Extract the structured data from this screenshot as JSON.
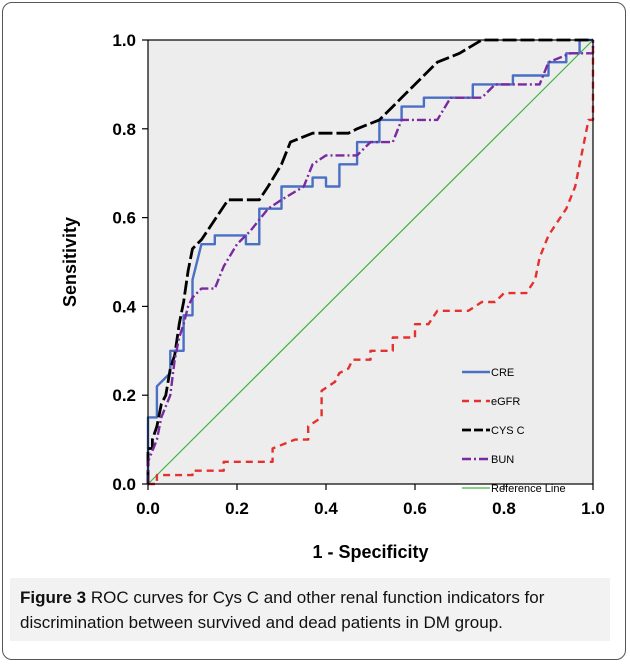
{
  "caption": {
    "label": "Figure 3",
    "text": "ROC curves for Cys C and other renal function indicators for discrimination between survived and dead patients in DM group."
  },
  "chart_data": {
    "type": "line",
    "title": "",
    "xlabel": "1 - Specificity",
    "ylabel": "Sensitivity",
    "xlim": [
      0,
      1
    ],
    "ylim": [
      0,
      1
    ],
    "x_ticks": [
      "0.0",
      "0.2",
      "0.4",
      "0.6",
      "0.8",
      "1.0"
    ],
    "y_ticks": [
      "0.0",
      "0.2",
      "0.4",
      "0.6",
      "0.8",
      "1.0"
    ],
    "grid": false,
    "plot_background": "#ededed",
    "legend_position": "bottom-right",
    "series": [
      {
        "name": "CRE",
        "color": "#4a6fc4",
        "dash": "solid",
        "points": [
          [
            0,
            0
          ],
          [
            0,
            0.15
          ],
          [
            0.02,
            0.15
          ],
          [
            0.02,
            0.22
          ],
          [
            0.05,
            0.25
          ],
          [
            0.05,
            0.3
          ],
          [
            0.08,
            0.3
          ],
          [
            0.08,
            0.38
          ],
          [
            0.1,
            0.38
          ],
          [
            0.1,
            0.46
          ],
          [
            0.12,
            0.54
          ],
          [
            0.15,
            0.54
          ],
          [
            0.15,
            0.56
          ],
          [
            0.22,
            0.56
          ],
          [
            0.22,
            0.54
          ],
          [
            0.25,
            0.54
          ],
          [
            0.25,
            0.62
          ],
          [
            0.3,
            0.62
          ],
          [
            0.3,
            0.67
          ],
          [
            0.37,
            0.67
          ],
          [
            0.37,
            0.69
          ],
          [
            0.4,
            0.69
          ],
          [
            0.4,
            0.67
          ],
          [
            0.43,
            0.67
          ],
          [
            0.43,
            0.72
          ],
          [
            0.47,
            0.72
          ],
          [
            0.47,
            0.77
          ],
          [
            0.52,
            0.77
          ],
          [
            0.52,
            0.82
          ],
          [
            0.57,
            0.82
          ],
          [
            0.57,
            0.85
          ],
          [
            0.62,
            0.85
          ],
          [
            0.62,
            0.87
          ],
          [
            0.73,
            0.87
          ],
          [
            0.73,
            0.9
          ],
          [
            0.82,
            0.9
          ],
          [
            0.82,
            0.92
          ],
          [
            0.9,
            0.92
          ],
          [
            0.9,
            0.95
          ],
          [
            0.94,
            0.95
          ],
          [
            0.94,
            0.97
          ],
          [
            0.97,
            0.97
          ],
          [
            0.97,
            1.0
          ],
          [
            1.0,
            1.0
          ]
        ]
      },
      {
        "name": "eGFR",
        "color": "#e53030",
        "dash": "dashed",
        "points": [
          [
            0,
            0
          ],
          [
            0.02,
            0
          ],
          [
            0.02,
            0.02
          ],
          [
            0.1,
            0.02
          ],
          [
            0.1,
            0.03
          ],
          [
            0.17,
            0.03
          ],
          [
            0.17,
            0.05
          ],
          [
            0.28,
            0.05
          ],
          [
            0.28,
            0.08
          ],
          [
            0.33,
            0.1
          ],
          [
            0.36,
            0.1
          ],
          [
            0.36,
            0.13
          ],
          [
            0.39,
            0.15
          ],
          [
            0.39,
            0.21
          ],
          [
            0.42,
            0.23
          ],
          [
            0.43,
            0.25
          ],
          [
            0.45,
            0.26
          ],
          [
            0.46,
            0.28
          ],
          [
            0.5,
            0.28
          ],
          [
            0.5,
            0.3
          ],
          [
            0.55,
            0.3
          ],
          [
            0.55,
            0.33
          ],
          [
            0.6,
            0.33
          ],
          [
            0.6,
            0.36
          ],
          [
            0.63,
            0.36
          ],
          [
            0.65,
            0.39
          ],
          [
            0.72,
            0.39
          ],
          [
            0.75,
            0.41
          ],
          [
            0.78,
            0.41
          ],
          [
            0.8,
            0.43
          ],
          [
            0.85,
            0.43
          ],
          [
            0.87,
            0.46
          ],
          [
            0.88,
            0.51
          ],
          [
            0.9,
            0.56
          ],
          [
            0.92,
            0.59
          ],
          [
            0.94,
            0.62
          ],
          [
            0.96,
            0.67
          ],
          [
            0.97,
            0.72
          ],
          [
            0.98,
            0.77
          ],
          [
            0.99,
            0.82
          ],
          [
            1.0,
            0.82
          ],
          [
            1.0,
            1.0
          ]
        ]
      },
      {
        "name": "CYS C",
        "color": "#000000",
        "dash": "longdash",
        "points": [
          [
            0,
            0
          ],
          [
            0,
            0.08
          ],
          [
            0.01,
            0.08
          ],
          [
            0.01,
            0.1
          ],
          [
            0.02,
            0.13
          ],
          [
            0.03,
            0.18
          ],
          [
            0.04,
            0.2
          ],
          [
            0.05,
            0.26
          ],
          [
            0.06,
            0.29
          ],
          [
            0.07,
            0.36
          ],
          [
            0.08,
            0.41
          ],
          [
            0.09,
            0.48
          ],
          [
            0.1,
            0.53
          ],
          [
            0.12,
            0.55
          ],
          [
            0.14,
            0.58
          ],
          [
            0.18,
            0.64
          ],
          [
            0.25,
            0.64
          ],
          [
            0.27,
            0.67
          ],
          [
            0.3,
            0.72
          ],
          [
            0.32,
            0.77
          ],
          [
            0.37,
            0.79
          ],
          [
            0.45,
            0.79
          ],
          [
            0.47,
            0.8
          ],
          [
            0.52,
            0.82
          ],
          [
            0.55,
            0.85
          ],
          [
            0.57,
            0.87
          ],
          [
            0.6,
            0.9
          ],
          [
            0.62,
            0.92
          ],
          [
            0.65,
            0.95
          ],
          [
            0.7,
            0.97
          ],
          [
            0.75,
            1.0
          ],
          [
            1.0,
            1.0
          ]
        ]
      },
      {
        "name": "BUN",
        "color": "#7a2aa0",
        "dash": "dashdot",
        "points": [
          [
            0,
            0
          ],
          [
            0,
            0.05
          ],
          [
            0.02,
            0.1
          ],
          [
            0.03,
            0.15
          ],
          [
            0.05,
            0.2
          ],
          [
            0.06,
            0.28
          ],
          [
            0.07,
            0.33
          ],
          [
            0.08,
            0.36
          ],
          [
            0.09,
            0.4
          ],
          [
            0.1,
            0.42
          ],
          [
            0.12,
            0.44
          ],
          [
            0.15,
            0.44
          ],
          [
            0.17,
            0.49
          ],
          [
            0.2,
            0.54
          ],
          [
            0.23,
            0.57
          ],
          [
            0.27,
            0.62
          ],
          [
            0.3,
            0.64
          ],
          [
            0.35,
            0.67
          ],
          [
            0.37,
            0.72
          ],
          [
            0.4,
            0.74
          ],
          [
            0.47,
            0.74
          ],
          [
            0.5,
            0.77
          ],
          [
            0.55,
            0.77
          ],
          [
            0.57,
            0.82
          ],
          [
            0.65,
            0.82
          ],
          [
            0.68,
            0.87
          ],
          [
            0.75,
            0.87
          ],
          [
            0.78,
            0.9
          ],
          [
            0.88,
            0.9
          ],
          [
            0.9,
            0.95
          ],
          [
            0.95,
            0.97
          ],
          [
            1.0,
            0.97
          ],
          [
            1.0,
            1.0
          ]
        ]
      },
      {
        "name": "Reference Line",
        "color": "#3cb43c",
        "dash": "solid",
        "points": [
          [
            0,
            0
          ],
          [
            1,
            1
          ]
        ]
      }
    ]
  }
}
